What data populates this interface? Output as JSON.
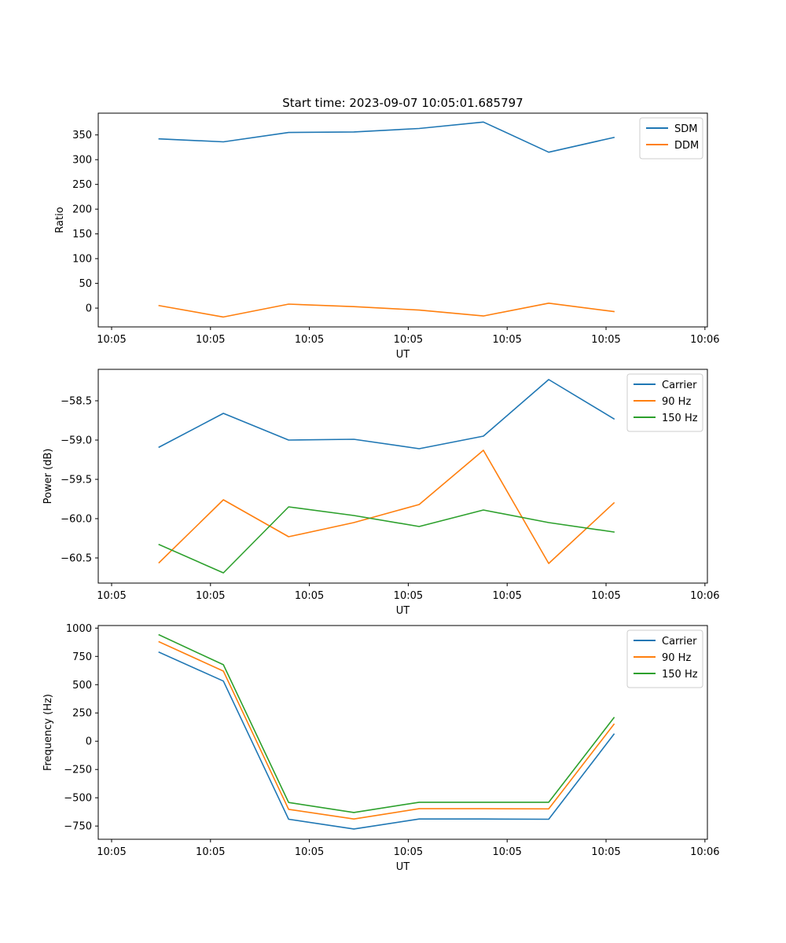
{
  "figure_title": "Start time: 2023-09-07 10:05:01.685797",
  "chart_data": [
    {
      "type": "line",
      "title": "Start time: 2023-09-07 10:05:01.685797",
      "xlabel": "UT",
      "ylabel": "Ratio",
      "x_units": "seconds after 10:05:00",
      "x": [
        4.8,
        11.3,
        17.9,
        24.5,
        31.1,
        37.6,
        44.2,
        50.8
      ],
      "xlim": [
        -1.35,
        60.25
      ],
      "xticks": [
        0,
        10,
        20,
        30,
        40,
        50,
        60
      ],
      "xtick_labels": [
        "10:05",
        "10:05",
        "10:05",
        "10:05",
        "10:05",
        "10:05",
        "10:06"
      ],
      "ylim": [
        -38,
        394
      ],
      "yticks": [
        0,
        50,
        100,
        150,
        200,
        250,
        300,
        350
      ],
      "ytick_labels": [
        "0",
        "50",
        "100",
        "150",
        "200",
        "250",
        "300",
        "350"
      ],
      "grid": false,
      "legend_position": "top-right",
      "series": [
        {
          "name": "SDM",
          "color": "#1f77b4",
          "values": [
            342,
            336,
            355,
            356,
            363,
            376,
            315,
            345
          ]
        },
        {
          "name": "DDM",
          "color": "#ff7f0e",
          "values": [
            5,
            -18,
            8,
            3,
            -4,
            -16,
            10,
            -7
          ]
        }
      ]
    },
    {
      "type": "line",
      "title": "",
      "xlabel": "UT",
      "ylabel": "Power (dB)",
      "x_units": "seconds after 10:05:00",
      "x": [
        4.8,
        11.3,
        17.9,
        24.5,
        31.1,
        37.6,
        44.2,
        50.8
      ],
      "xlim": [
        -1.35,
        60.25
      ],
      "xticks": [
        0,
        10,
        20,
        30,
        40,
        50,
        60
      ],
      "xtick_labels": [
        "10:05",
        "10:05",
        "10:05",
        "10:05",
        "10:05",
        "10:05",
        "10:06"
      ],
      "ylim": [
        -60.82,
        -58.1
      ],
      "yticks": [
        -60.5,
        -60.0,
        -59.5,
        -59.0,
        -58.5
      ],
      "ytick_labels": [
        "−60.5",
        "−60.0",
        "−59.5",
        "−59.0",
        "−58.5"
      ],
      "grid": false,
      "legend_position": "top-right",
      "series": [
        {
          "name": "Carrier",
          "color": "#1f77b4",
          "values": [
            -59.09,
            -58.66,
            -59.0,
            -58.99,
            -59.11,
            -58.95,
            -58.23,
            -58.73
          ]
        },
        {
          "name": "90 Hz",
          "color": "#ff7f0e",
          "values": [
            -60.56,
            -59.76,
            -60.23,
            -60.05,
            -59.82,
            -59.13,
            -60.57,
            -59.8
          ]
        },
        {
          "name": "150 Hz",
          "color": "#2ca02c",
          "values": [
            -60.33,
            -60.69,
            -59.85,
            -59.96,
            -60.1,
            -59.89,
            -60.05,
            -60.17
          ]
        }
      ]
    },
    {
      "type": "line",
      "title": "",
      "xlabel": "UT",
      "ylabel": "Frequency (Hz)",
      "x_units": "seconds after 10:05:00",
      "x": [
        4.8,
        11.3,
        17.9,
        24.5,
        31.1,
        37.6,
        44.2,
        50.8
      ],
      "xlim": [
        -1.35,
        60.25
      ],
      "xticks": [
        0,
        10,
        20,
        30,
        40,
        50,
        60
      ],
      "xtick_labels": [
        "10:05",
        "10:05",
        "10:05",
        "10:05",
        "10:05",
        "10:05",
        "10:06"
      ],
      "ylim": [
        -867,
        1023
      ],
      "yticks": [
        -750,
        -500,
        -250,
        0,
        250,
        500,
        750,
        1000
      ],
      "ytick_labels": [
        "−750",
        "−500",
        "−250",
        "0",
        "250",
        "500",
        "750",
        "1000"
      ],
      "grid": false,
      "legend_position": "top-right",
      "series": [
        {
          "name": "Carrier",
          "color": "#1f77b4",
          "values": [
            787,
            532,
            -690,
            -776,
            -688,
            -688,
            -690,
            62
          ]
        },
        {
          "name": "90 Hz",
          "color": "#ff7f0e",
          "values": [
            879,
            620,
            -602,
            -688,
            -597,
            -597,
            -598,
            150
          ]
        },
        {
          "name": "150 Hz",
          "color": "#2ca02c",
          "values": [
            940,
            676,
            -542,
            -630,
            -540,
            -540,
            -540,
            208
          ]
        }
      ]
    }
  ]
}
